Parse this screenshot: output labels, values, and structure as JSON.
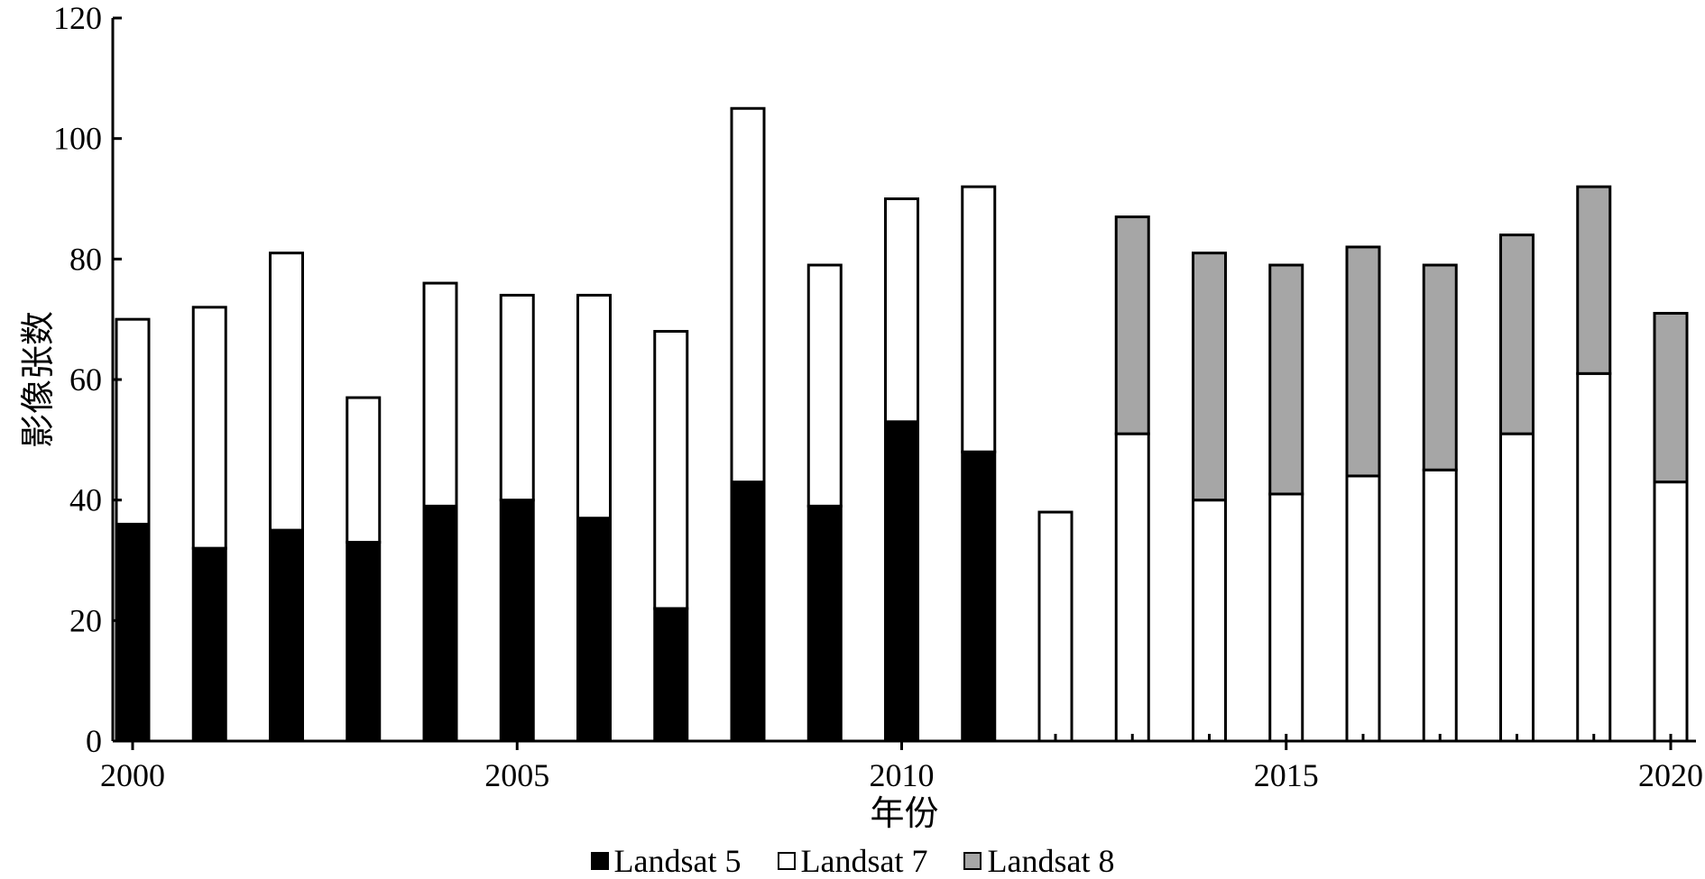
{
  "chart_data": {
    "type": "bar",
    "stacked": true,
    "xlabel": "年份",
    "ylabel": "影像张数",
    "ylim": [
      0,
      120
    ],
    "yticks": [
      0,
      20,
      40,
      60,
      80,
      100,
      120
    ],
    "xticks": [
      "2000",
      "2005",
      "2010",
      "2015",
      "2020"
    ],
    "categories": [
      2000,
      2001,
      2002,
      2003,
      2004,
      2005,
      2006,
      2007,
      2008,
      2009,
      2010,
      2011,
      2012,
      2013,
      2014,
      2015,
      2016,
      2017,
      2018,
      2019,
      2020
    ],
    "series": [
      {
        "name": "Landsat 5",
        "color": "#000000",
        "values": [
          36,
          32,
          35,
          33,
          39,
          40,
          37,
          22,
          43,
          39,
          53,
          48,
          0,
          0,
          0,
          0,
          0,
          0,
          0,
          0,
          0
        ]
      },
      {
        "name": "Landsat 7",
        "color": "#ffffff",
        "values": [
          34,
          40,
          46,
          24,
          37,
          34,
          37,
          46,
          62,
          40,
          37,
          44,
          38,
          51,
          40,
          41,
          44,
          45,
          51,
          61,
          43
        ]
      },
      {
        "name": "Landsat 8",
        "color": "#a6a6a6",
        "values": [
          0,
          0,
          0,
          0,
          0,
          0,
          0,
          0,
          0,
          0,
          0,
          0,
          0,
          36,
          41,
          38,
          38,
          34,
          33,
          31,
          28
        ]
      }
    ],
    "legend_position": "bottom",
    "grid": false
  }
}
